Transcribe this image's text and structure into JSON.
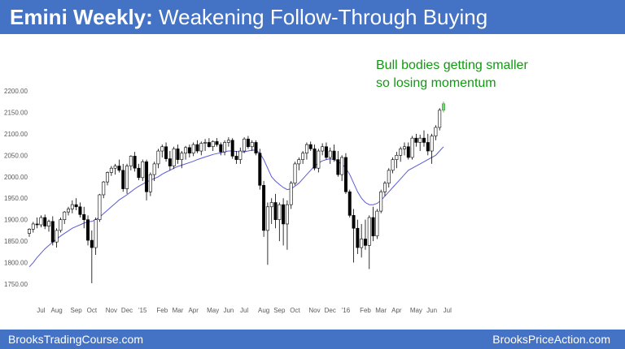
{
  "slide": {
    "title_bold": "Emini Weekly:",
    "title_rest": " Weakening Follow-Through Buying",
    "annotation_line1": "Bull bodies getting smaller",
    "annotation_line2": "so losing momentum",
    "footer_left": "BrooksTradingCourse.com",
    "footer_right": "BrooksPriceAction.com"
  },
  "colors": {
    "header": "#4472c4",
    "annotation": "#119a11",
    "bull": "#ffffff",
    "bear": "#000000",
    "moving_average": "#5b5bd6",
    "highlight": "#7ad67a"
  },
  "chart_data": {
    "type": "candlestick",
    "ylim": [
      1725,
      2200
    ],
    "y_ticks": [
      "1750.00",
      "1800.00",
      "1850.00",
      "1900.00",
      "1950.00",
      "2000.00",
      "2050.00",
      "2100.00",
      "2150.00",
      "2200.00"
    ],
    "y_tick_values": [
      1750,
      1800,
      1850,
      1900,
      1950,
      2000,
      2050,
      2100,
      2150,
      2200
    ],
    "x_tick_labels": [
      "Jul",
      "Aug",
      "Sep",
      "Oct",
      "Nov",
      "Dec",
      "'15",
      "Feb",
      "Mar",
      "Apr",
      "May",
      "Jun",
      "Jul",
      "Aug",
      "Sep",
      "Oct",
      "Nov",
      "Dec",
      "'16",
      "Feb",
      "Mar",
      "Apr",
      "May",
      "Jun",
      "Jul"
    ],
    "x_tick_index": [
      3,
      7,
      12,
      16,
      21,
      25,
      29,
      34,
      38,
      42,
      47,
      51,
      55,
      60,
      64,
      68,
      73,
      77,
      81,
      86,
      90,
      94,
      99,
      103,
      107
    ],
    "grid": false,
    "candles": [
      {
        "o": 1868,
        "h": 1880,
        "l": 1860,
        "c": 1878
      },
      {
        "o": 1878,
        "h": 1895,
        "l": 1870,
        "c": 1890
      },
      {
        "o": 1890,
        "h": 1905,
        "l": 1880,
        "c": 1888
      },
      {
        "o": 1888,
        "h": 1910,
        "l": 1882,
        "c": 1905
      },
      {
        "o": 1905,
        "h": 1912,
        "l": 1878,
        "c": 1885
      },
      {
        "o": 1885,
        "h": 1900,
        "l": 1872,
        "c": 1896
      },
      {
        "o": 1896,
        "h": 1908,
        "l": 1840,
        "c": 1848
      },
      {
        "o": 1848,
        "h": 1880,
        "l": 1835,
        "c": 1875
      },
      {
        "o": 1875,
        "h": 1905,
        "l": 1870,
        "c": 1900
      },
      {
        "o": 1900,
        "h": 1920,
        "l": 1890,
        "c": 1918
      },
      {
        "o": 1918,
        "h": 1930,
        "l": 1910,
        "c": 1925
      },
      {
        "o": 1925,
        "h": 1945,
        "l": 1915,
        "c": 1935
      },
      {
        "o": 1935,
        "h": 1950,
        "l": 1922,
        "c": 1930
      },
      {
        "o": 1930,
        "h": 1940,
        "l": 1905,
        "c": 1912
      },
      {
        "o": 1912,
        "h": 1930,
        "l": 1880,
        "c": 1900
      },
      {
        "o": 1900,
        "h": 1910,
        "l": 1840,
        "c": 1852
      },
      {
        "o": 1852,
        "h": 1875,
        "l": 1752,
        "c": 1835
      },
      {
        "o": 1835,
        "h": 1905,
        "l": 1818,
        "c": 1900
      },
      {
        "o": 1900,
        "h": 1960,
        "l": 1895,
        "c": 1958
      },
      {
        "o": 1958,
        "h": 1990,
        "l": 1950,
        "c": 1988
      },
      {
        "o": 1988,
        "h": 2012,
        "l": 1980,
        "c": 2010
      },
      {
        "o": 2010,
        "h": 2025,
        "l": 2002,
        "c": 2020
      },
      {
        "o": 2020,
        "h": 2030,
        "l": 2005,
        "c": 2025
      },
      {
        "o": 2025,
        "h": 2040,
        "l": 2010,
        "c": 2015
      },
      {
        "o": 2015,
        "h": 2030,
        "l": 1965,
        "c": 1972
      },
      {
        "o": 1972,
        "h": 2030,
        "l": 1960,
        "c": 2025
      },
      {
        "o": 2025,
        "h": 2050,
        "l": 2015,
        "c": 2048
      },
      {
        "o": 2048,
        "h": 2058,
        "l": 2012,
        "c": 2020
      },
      {
        "o": 2020,
        "h": 2030,
        "l": 1992,
        "c": 1998
      },
      {
        "o": 1998,
        "h": 2040,
        "l": 1990,
        "c": 2035
      },
      {
        "o": 2035,
        "h": 2040,
        "l": 1945,
        "c": 1965
      },
      {
        "o": 1965,
        "h": 2010,
        "l": 1955,
        "c": 2005
      },
      {
        "o": 2005,
        "h": 2035,
        "l": 1990,
        "c": 2030
      },
      {
        "o": 2030,
        "h": 2065,
        "l": 2020,
        "c": 2060
      },
      {
        "o": 2060,
        "h": 2075,
        "l": 2045,
        "c": 2070
      },
      {
        "o": 2070,
        "h": 2080,
        "l": 2035,
        "c": 2042
      },
      {
        "o": 2042,
        "h": 2060,
        "l": 2015,
        "c": 2025
      },
      {
        "o": 2025,
        "h": 2070,
        "l": 2018,
        "c": 2065
      },
      {
        "o": 2065,
        "h": 2075,
        "l": 2030,
        "c": 2040
      },
      {
        "o": 2040,
        "h": 2060,
        "l": 2020,
        "c": 2055
      },
      {
        "o": 2055,
        "h": 2072,
        "l": 2040,
        "c": 2068
      },
      {
        "o": 2068,
        "h": 2075,
        "l": 2045,
        "c": 2055
      },
      {
        "o": 2055,
        "h": 2080,
        "l": 2048,
        "c": 2075
      },
      {
        "o": 2075,
        "h": 2085,
        "l": 2055,
        "c": 2060
      },
      {
        "o": 2060,
        "h": 2082,
        "l": 2050,
        "c": 2078
      },
      {
        "o": 2078,
        "h": 2088,
        "l": 2060,
        "c": 2080
      },
      {
        "o": 2080,
        "h": 2090,
        "l": 2068,
        "c": 2070
      },
      {
        "o": 2070,
        "h": 2085,
        "l": 2060,
        "c": 2082
      },
      {
        "o": 2082,
        "h": 2090,
        "l": 2070,
        "c": 2075
      },
      {
        "o": 2075,
        "h": 2080,
        "l": 2050,
        "c": 2058
      },
      {
        "o": 2058,
        "h": 2085,
        "l": 2050,
        "c": 2080
      },
      {
        "o": 2080,
        "h": 2092,
        "l": 2070,
        "c": 2085
      },
      {
        "o": 2085,
        "h": 2090,
        "l": 2042,
        "c": 2048
      },
      {
        "o": 2048,
        "h": 2060,
        "l": 2030,
        "c": 2040
      },
      {
        "o": 2040,
        "h": 2068,
        "l": 2030,
        "c": 2060
      },
      {
        "o": 2060,
        "h": 2092,
        "l": 2055,
        "c": 2088
      },
      {
        "o": 2088,
        "h": 2095,
        "l": 2065,
        "c": 2070
      },
      {
        "o": 2070,
        "h": 2085,
        "l": 2060,
        "c": 2080
      },
      {
        "o": 2080,
        "h": 2085,
        "l": 2050,
        "c": 2055
      },
      {
        "o": 2055,
        "h": 2065,
        "l": 1970,
        "c": 1980
      },
      {
        "o": 1980,
        "h": 1990,
        "l": 1860,
        "c": 1875
      },
      {
        "o": 1875,
        "h": 1940,
        "l": 1795,
        "c": 1930
      },
      {
        "o": 1930,
        "h": 1950,
        "l": 1890,
        "c": 1940
      },
      {
        "o": 1940,
        "h": 1960,
        "l": 1880,
        "c": 1900
      },
      {
        "o": 1900,
        "h": 1940,
        "l": 1850,
        "c": 1935
      },
      {
        "o": 1935,
        "h": 1950,
        "l": 1840,
        "c": 1890
      },
      {
        "o": 1890,
        "h": 1945,
        "l": 1830,
        "c": 1935
      },
      {
        "o": 1935,
        "h": 1990,
        "l": 1925,
        "c": 1985
      },
      {
        "o": 1985,
        "h": 2035,
        "l": 1980,
        "c": 2030
      },
      {
        "o": 2030,
        "h": 2045,
        "l": 2015,
        "c": 2040
      },
      {
        "o": 2040,
        "h": 2060,
        "l": 2030,
        "c": 2055
      },
      {
        "o": 2055,
        "h": 2080,
        "l": 2040,
        "c": 2075
      },
      {
        "o": 2075,
        "h": 2082,
        "l": 2060,
        "c": 2065
      },
      {
        "o": 2065,
        "h": 2075,
        "l": 2015,
        "c": 2020
      },
      {
        "o": 2020,
        "h": 2065,
        "l": 2010,
        "c": 2060
      },
      {
        "o": 2060,
        "h": 2078,
        "l": 2050,
        "c": 2070
      },
      {
        "o": 2070,
        "h": 2080,
        "l": 2040,
        "c": 2045
      },
      {
        "o": 2045,
        "h": 2068,
        "l": 2030,
        "c": 2060
      },
      {
        "o": 2060,
        "h": 2075,
        "l": 2035,
        "c": 2040
      },
      {
        "o": 2040,
        "h": 2060,
        "l": 2000,
        "c": 2005
      },
      {
        "o": 2005,
        "h": 2050,
        "l": 1990,
        "c": 2045
      },
      {
        "o": 2045,
        "h": 2055,
        "l": 1960,
        "c": 1965
      },
      {
        "o": 1965,
        "h": 1970,
        "l": 1905,
        "c": 1910
      },
      {
        "o": 1910,
        "h": 1925,
        "l": 1800,
        "c": 1880
      },
      {
        "o": 1880,
        "h": 1900,
        "l": 1820,
        "c": 1835
      },
      {
        "o": 1835,
        "h": 1890,
        "l": 1812,
        "c": 1855
      },
      {
        "o": 1855,
        "h": 1900,
        "l": 1830,
        "c": 1840
      },
      {
        "o": 1840,
        "h": 1910,
        "l": 1785,
        "c": 1905
      },
      {
        "o": 1905,
        "h": 1930,
        "l": 1850,
        "c": 1862
      },
      {
        "o": 1862,
        "h": 1925,
        "l": 1855,
        "c": 1920
      },
      {
        "o": 1920,
        "h": 1970,
        "l": 1915,
        "c": 1965
      },
      {
        "o": 1965,
        "h": 1990,
        "l": 1955,
        "c": 1985
      },
      {
        "o": 1985,
        "h": 2020,
        "l": 1975,
        "c": 2015
      },
      {
        "o": 2015,
        "h": 2045,
        "l": 2008,
        "c": 2040
      },
      {
        "o": 2040,
        "h": 2058,
        "l": 2020,
        "c": 2050
      },
      {
        "o": 2050,
        "h": 2070,
        "l": 2035,
        "c": 2065
      },
      {
        "o": 2065,
        "h": 2080,
        "l": 2050,
        "c": 2070
      },
      {
        "o": 2070,
        "h": 2080,
        "l": 2040,
        "c": 2045
      },
      {
        "o": 2045,
        "h": 2095,
        "l": 2040,
        "c": 2090
      },
      {
        "o": 2090,
        "h": 2100,
        "l": 2070,
        "c": 2080
      },
      {
        "o": 2080,
        "h": 2098,
        "l": 2060,
        "c": 2090
      },
      {
        "o": 2090,
        "h": 2108,
        "l": 2070,
        "c": 2080
      },
      {
        "o": 2080,
        "h": 2100,
        "l": 2050,
        "c": 2060
      },
      {
        "o": 2060,
        "h": 2100,
        "l": 2030,
        "c": 2095
      },
      {
        "o": 2095,
        "h": 2120,
        "l": 2085,
        "c": 2115
      },
      {
        "o": 2115,
        "h": 2160,
        "l": 2108,
        "c": 2155
      },
      {
        "o": 2155,
        "h": 2175,
        "l": 2150,
        "c": 2170
      }
    ],
    "moving_average": [
      1790,
      1800,
      1812,
      1822,
      1832,
      1840,
      1848,
      1855,
      1862,
      1868,
      1874,
      1880,
      1884,
      1888,
      1892,
      1895,
      1896,
      1900,
      1906,
      1914,
      1922,
      1930,
      1938,
      1946,
      1952,
      1958,
      1965,
      1972,
      1978,
      1983,
      1988,
      1992,
      1996,
      2000,
      2006,
      2011,
      2015,
      2020,
      2024,
      2027,
      2030,
      2033,
      2036,
      2040,
      2043,
      2046,
      2049,
      2052,
      2054,
      2056,
      2058,
      2060,
      2060,
      2059,
      2058,
      2058,
      2060,
      2062,
      2062,
      2055,
      2040,
      2020,
      2000,
      1990,
      1982,
      1975,
      1970,
      1972,
      1978,
      1985,
      1995,
      2005,
      2015,
      2025,
      2032,
      2037,
      2040,
      2042,
      2040,
      2035,
      2030,
      2020,
      2005,
      1985,
      1965,
      1950,
      1940,
      1935,
      1935,
      1938,
      1945,
      1955,
      1965,
      1975,
      1985,
      1995,
      2005,
      2015,
      2020,
      2025,
      2030,
      2035,
      2040,
      2045,
      2050,
      2060,
      2070
    ]
  }
}
